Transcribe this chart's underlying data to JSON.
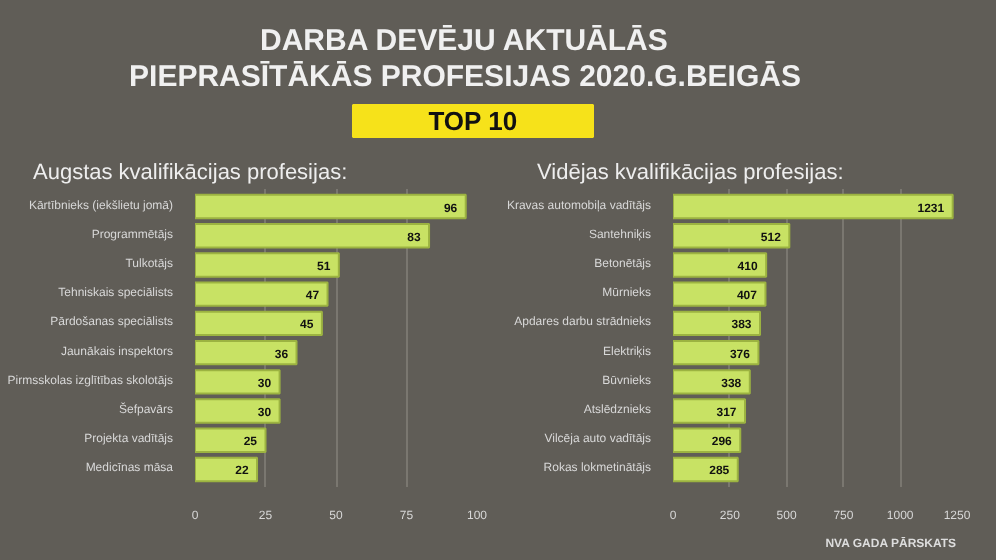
{
  "chart_data": [
    {
      "type": "bar",
      "orientation": "horizontal",
      "title": "DARBA DEVĒJU AKTUĀLĀS PIEPRASĪTĀKĀS PROFESIJAS 2020.G.BEIGĀS",
      "subtitle": "TOP 10",
      "xlabel": "Augstas kvalifikācijas profesijas:",
      "categories": [
        "Kārtībnieks (iekšlietu jomā)",
        "Programmētājs",
        "Tulkotājs",
        "Tehniskais speciālists",
        "Pārdošanas speciālists",
        "Jaunākais inspektors",
        "Pirmsskolas izglītības skolotājs",
        "Šefpavārs",
        "Projekta vadītājs",
        "Medicīnas māsa"
      ],
      "values": [
        96,
        83,
        51,
        47,
        45,
        36,
        30,
        30,
        25,
        22
      ],
      "color": "#c8e264",
      "xlim": [
        0,
        100
      ],
      "xticks": [
        0,
        25,
        50,
        75,
        100
      ],
      "grid": "x",
      "data_labels": true
    },
    {
      "type": "bar",
      "orientation": "horizontal",
      "xlabel": "Vidējas kvalifikācijas profesijas:",
      "categories": [
        "Kravas automobiļa vadītājs",
        "Santehniķis",
        "Betonētājs",
        "Mūrnieks",
        "Apdares darbu strādnieks",
        "Elektriķis",
        "Būvnieks",
        "Atslēdznieks",
        "Vilcēja auto vadītājs",
        "Rokas lokmetinātājs"
      ],
      "values": [
        1231,
        512,
        410,
        407,
        383,
        376,
        338,
        317,
        296,
        285
      ],
      "color": "#c8e264",
      "xlim": [
        0,
        1250
      ],
      "xticks": [
        0,
        250,
        500,
        750,
        1000,
        1250
      ],
      "grid": "x",
      "data_labels": true,
      "annotations": [
        "NVA GADA PĀRSKATS"
      ]
    }
  ]
}
